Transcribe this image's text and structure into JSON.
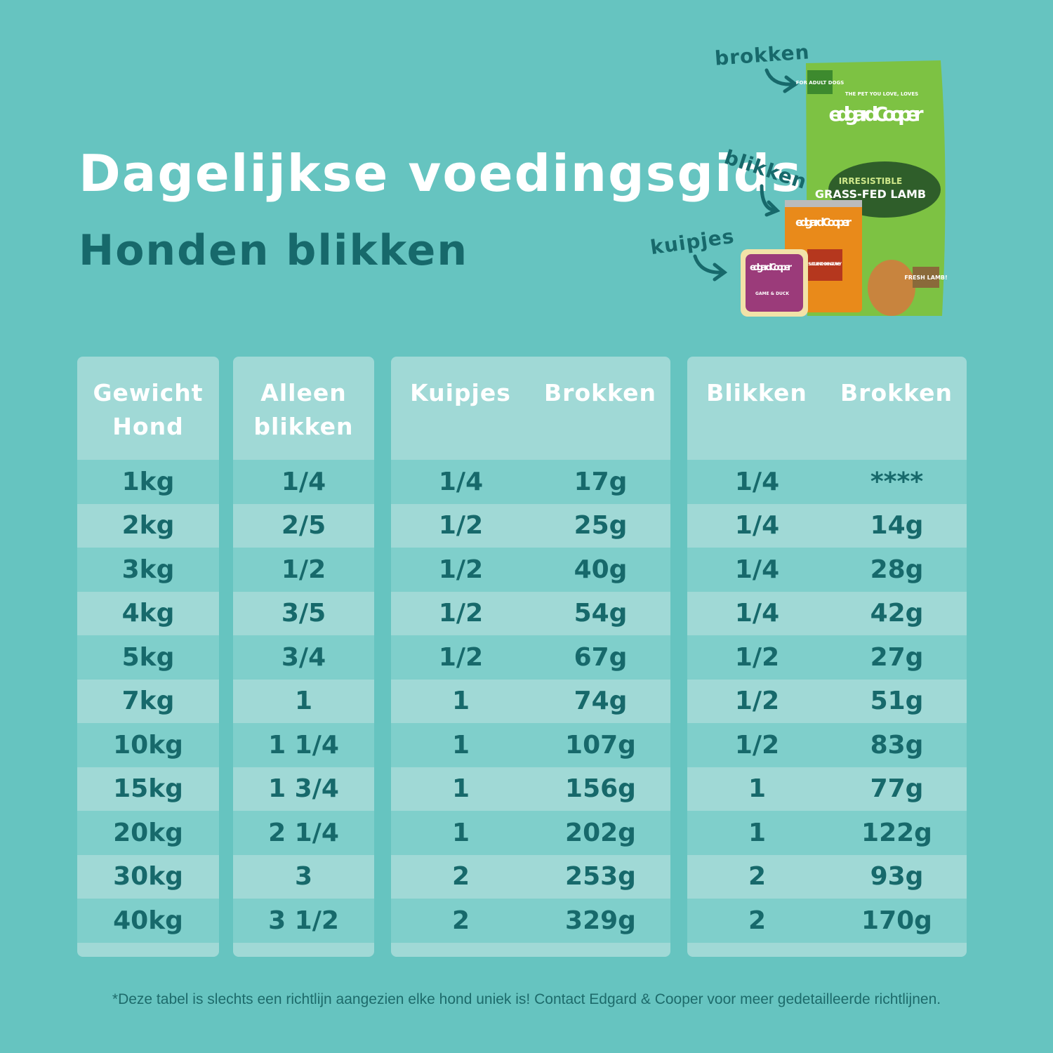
{
  "header": {
    "title": "Dagelijkse voedingsgids",
    "subtitle": "Honden blikken"
  },
  "labels": {
    "brokken": "brokken",
    "blikken": "blikken",
    "kuipjes": "kuipjes"
  },
  "products": {
    "bag": {
      "badge": "FOR ADULT DOGS",
      "tagline": "THE PET YOU LOVE, LOVES",
      "brand": "edgard Cooper",
      "line1": "IRRESISTIBLE",
      "line2": "GRASS-FED LAMB",
      "sticker": "FRESH LAMB!"
    },
    "can": {
      "brand": "edgard Cooper",
      "name": "SUCCULENT CHICKEN & TURKEY"
    },
    "tub": {
      "brand": "edgard Cooper",
      "name": "GAME & DUCK"
    }
  },
  "table": {
    "panels": [
      {
        "headers": [
          "Gewicht Hond"
        ],
        "rows": [
          [
            "1kg"
          ],
          [
            "2kg"
          ],
          [
            "3kg"
          ],
          [
            "4kg"
          ],
          [
            "5kg"
          ],
          [
            "7kg"
          ],
          [
            "10kg"
          ],
          [
            "15kg"
          ],
          [
            "20kg"
          ],
          [
            "30kg"
          ],
          [
            "40kg"
          ]
        ]
      },
      {
        "headers": [
          "Alleen blikken"
        ],
        "rows": [
          [
            "1/4"
          ],
          [
            "2/5"
          ],
          [
            "1/2"
          ],
          [
            "3/5"
          ],
          [
            "3/4"
          ],
          [
            "1"
          ],
          [
            "1 1/4"
          ],
          [
            "1 3/4"
          ],
          [
            "2 1/4"
          ],
          [
            "3"
          ],
          [
            "3 1/2"
          ]
        ]
      },
      {
        "headers": [
          "Kuipjes",
          "Brokken"
        ],
        "rows": [
          [
            "1/4",
            "17g"
          ],
          [
            "1/2",
            "25g"
          ],
          [
            "1/2",
            "40g"
          ],
          [
            "1/2",
            "54g"
          ],
          [
            "1/2",
            "67g"
          ],
          [
            "1",
            "74g"
          ],
          [
            "1",
            "107g"
          ],
          [
            "1",
            "156g"
          ],
          [
            "1",
            "202g"
          ],
          [
            "2",
            "253g"
          ],
          [
            "2",
            "329g"
          ]
        ]
      },
      {
        "headers": [
          "Blikken",
          "Brokken"
        ],
        "rows": [
          [
            "1/4",
            "****"
          ],
          [
            "1/4",
            "14g"
          ],
          [
            "1/4",
            "28g"
          ],
          [
            "1/4",
            "42g"
          ],
          [
            "1/2",
            "27g"
          ],
          [
            "1/2",
            "51g"
          ],
          [
            "1/2",
            "83g"
          ],
          [
            "1",
            "77g"
          ],
          [
            "1",
            "122g"
          ],
          [
            "2",
            "93g"
          ],
          [
            "2",
            "170g"
          ]
        ]
      }
    ]
  },
  "footnote": "*Deze tabel is slechts een richtlijn aangezien elke hond uniek is! Contact Edgard & Cooper voor meer gedetailleerde richtlijnen."
}
